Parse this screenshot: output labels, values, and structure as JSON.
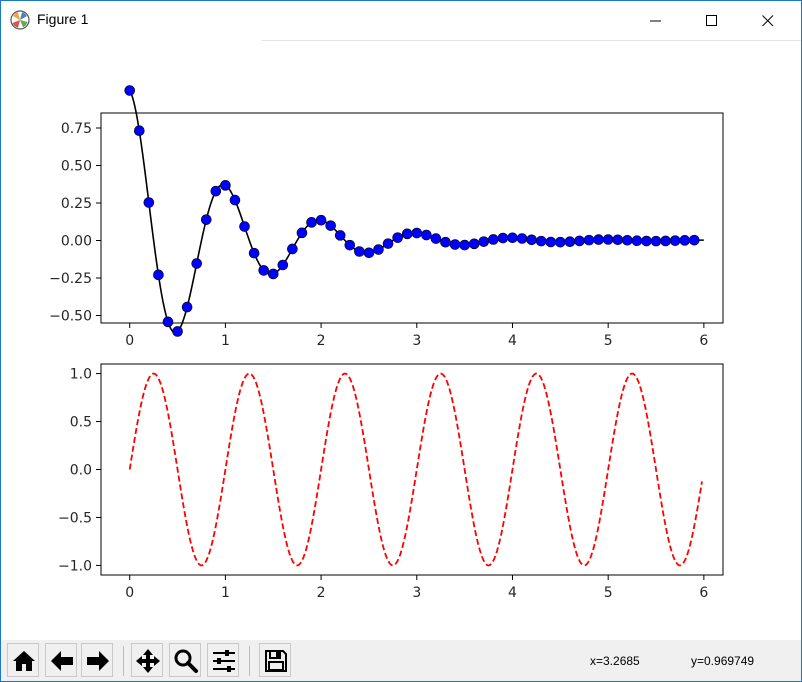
{
  "window": {
    "title": "Figure 1",
    "minimize_icon": "minimize-icon",
    "maximize_icon": "maximize-icon",
    "close_icon": "close-icon"
  },
  "toolbar": {
    "tools": [
      {
        "name": "home",
        "icon": "home-icon"
      },
      {
        "name": "back",
        "icon": "arrow-left-icon"
      },
      {
        "name": "forward",
        "icon": "arrow-right-icon"
      },
      {
        "name": "pan",
        "icon": "move-icon"
      },
      {
        "name": "zoom",
        "icon": "magnifier-icon"
      },
      {
        "name": "subplots",
        "icon": "sliders-icon"
      },
      {
        "name": "save",
        "icon": "floppy-disk-icon"
      }
    ],
    "coord_x": "x=3.2685",
    "coord_y": "y=0.969749"
  },
  "chart_data": [
    {
      "type": "line",
      "description_series": [
        {
          "style": "line",
          "color": "#000000",
          "function": "exp(-t)*cos(2*pi*t)"
        },
        {
          "style": "markers",
          "color": "#0000ff",
          "step": 0.1
        }
      ],
      "x": [
        0.0,
        0.1,
        0.2,
        0.3,
        0.4,
        0.5,
        0.6,
        0.7,
        0.8,
        0.9,
        1.0,
        1.1,
        1.2,
        1.3,
        1.4,
        1.5,
        1.6,
        1.7,
        1.8,
        1.9,
        2.0,
        2.1,
        2.2,
        2.3,
        2.4,
        2.5,
        2.6,
        2.7,
        2.8,
        2.9,
        3.0,
        3.1,
        3.2,
        3.3,
        3.4,
        3.5,
        3.6,
        3.7,
        3.8,
        3.9,
        4.0,
        4.1,
        4.2,
        4.3,
        4.4,
        4.5,
        4.6,
        4.7,
        4.8,
        4.9,
        5.0,
        5.1,
        5.2,
        5.3,
        5.4,
        5.5,
        5.6,
        5.7,
        5.8,
        5.9
      ],
      "xlim": [
        -0.3,
        6.2
      ],
      "ylim": [
        -0.55,
        0.85
      ],
      "xticks": [
        "0",
        "1",
        "2",
        "3",
        "4",
        "5",
        "6"
      ],
      "yticks": [
        "−0.50",
        "−0.25",
        "0.00",
        "0.25",
        "0.50",
        "0.75"
      ],
      "ytick_values": [
        -0.5,
        -0.25,
        0.0,
        0.25,
        0.5,
        0.75
      ],
      "xtick_values": [
        0,
        1,
        2,
        3,
        4,
        5,
        6
      ],
      "grid": false
    },
    {
      "type": "line",
      "series_style": {
        "color": "#ff0000",
        "linestyle": "dashed",
        "function": "cos(2*pi*t - pi/2)"
      },
      "x_range": [
        0.0,
        5.98
      ],
      "xlim": [
        -0.3,
        6.2
      ],
      "ylim": [
        -1.1,
        1.1
      ],
      "xticks": [
        "0",
        "1",
        "2",
        "3",
        "4",
        "5",
        "6"
      ],
      "yticks": [
        "−1.0",
        "−0.5",
        "0.0",
        "0.5",
        "1.0"
      ],
      "ytick_values": [
        -1.0,
        -0.5,
        0.0,
        0.5,
        1.0
      ],
      "xtick_values": [
        0,
        1,
        2,
        3,
        4,
        5,
        6
      ],
      "grid": false
    }
  ]
}
